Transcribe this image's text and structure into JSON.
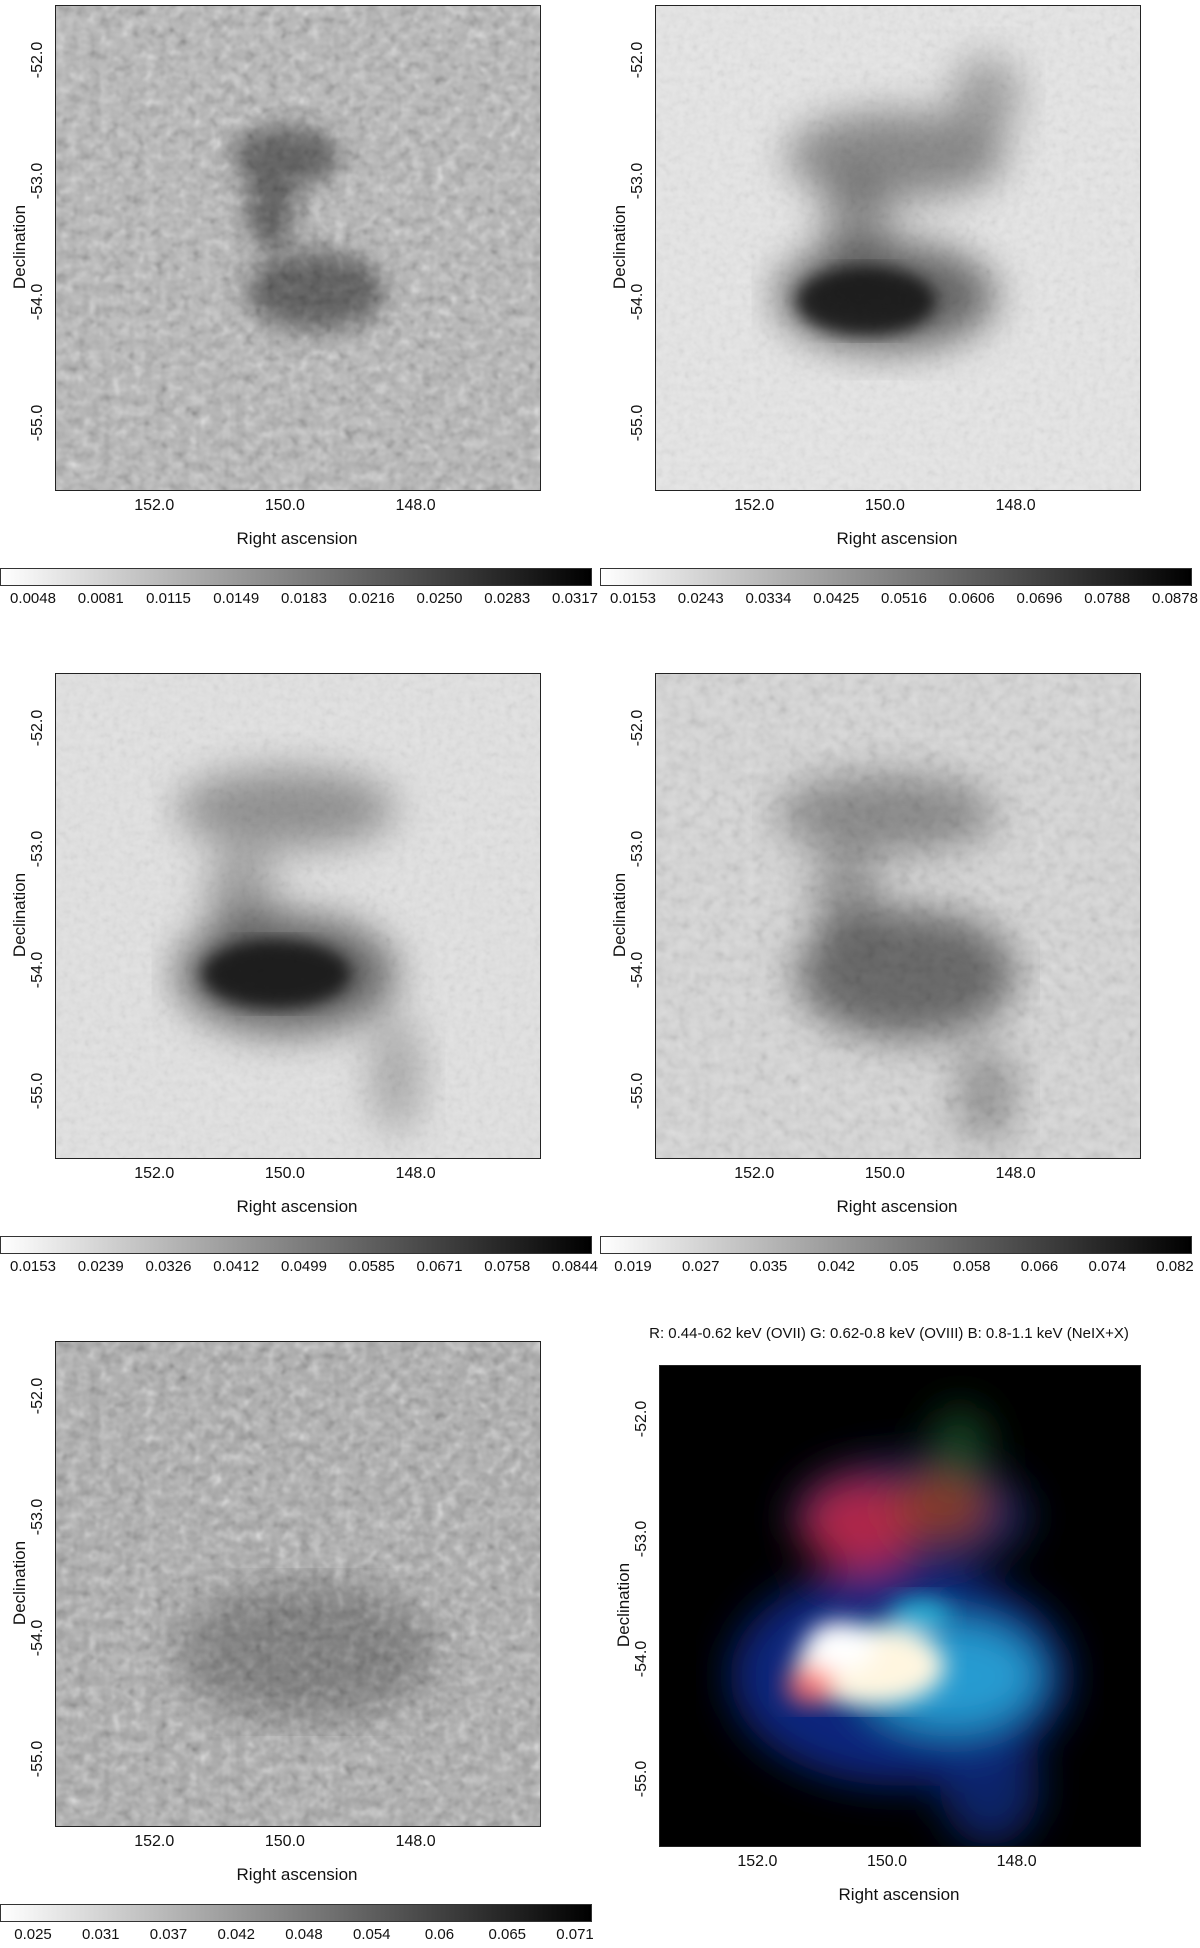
{
  "axes": {
    "xlabel": "Right ascension",
    "ylabel": "Declination",
    "xticks": [
      "152.0",
      "150.0",
      "148.0"
    ],
    "yticks": [
      "-52.0",
      "-53.0",
      "-54.0",
      "-55.0"
    ]
  },
  "panels": [
    {
      "id": "p1",
      "colorbar": [
        "0.0048",
        "0.0081",
        "0.0115",
        "0.0149",
        "0.0183",
        "0.0216",
        "0.0250",
        "0.0283",
        "0.0317"
      ]
    },
    {
      "id": "p2",
      "colorbar": [
        "0.0153",
        "0.0243",
        "0.0334",
        "0.0425",
        "0.0516",
        "0.0606",
        "0.0696",
        "0.0788",
        "0.0878"
      ]
    },
    {
      "id": "p3",
      "colorbar": [
        "0.0153",
        "0.0239",
        "0.0326",
        "0.0412",
        "0.0499",
        "0.0585",
        "0.0671",
        "0.0758",
        "0.0844"
      ]
    },
    {
      "id": "p4",
      "colorbar": [
        "0.019",
        "0.027",
        "0.035",
        "0.042",
        "0.05",
        "0.058",
        "0.066",
        "0.074",
        "0.082"
      ]
    },
    {
      "id": "p5",
      "colorbar": [
        "0.025",
        "0.031",
        "0.037",
        "0.042",
        "0.048",
        "0.054",
        "0.06",
        "0.065",
        "0.071"
      ]
    },
    {
      "id": "p6",
      "title": "R: 0.44-0.62 keV (OVII) G: 0.62-0.8 keV (OVIII) B: 0.8-1.1 keV (NeIX+X)"
    }
  ],
  "colors": {
    "background": "#ffffff",
    "colorbar_low": "#ffffff",
    "colorbar_high": "#000000",
    "rgb_background": "#000000"
  }
}
